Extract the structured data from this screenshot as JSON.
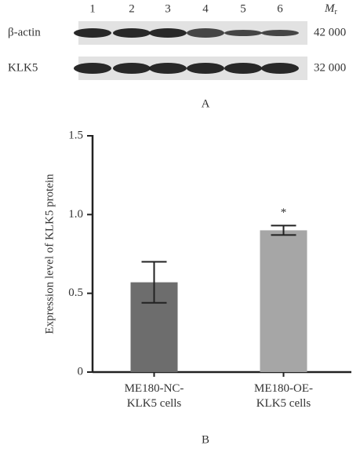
{
  "blot": {
    "lanes": [
      "1",
      "2",
      "3",
      "4",
      "5",
      "6"
    ],
    "mr_label": "M",
    "mr_sub": "r",
    "rows": [
      {
        "name": "β-actin",
        "mr": "42 000"
      },
      {
        "name": "KLK5",
        "mr": "32 000"
      }
    ],
    "panel_label": "A"
  },
  "chart_data": {
    "type": "bar",
    "y_label": "Expression level of KLK5 protein",
    "categories": [
      "ME180-NC-KLK5 cells",
      "ME180-OE-KLK5 cells"
    ],
    "values": [
      0.57,
      0.9
    ],
    "errors": [
      0.13,
      0.03
    ],
    "colors": [
      "#6d6d6d",
      "#a6a6a6"
    ],
    "ylim": [
      0,
      1.5
    ],
    "yticks": [
      0,
      0.5,
      {
        "value": 1,
        "label": "1.0"
      },
      1.5
    ],
    "annotations": [
      {
        "text": "*",
        "category": "ME180-OE-KLK5 cells"
      }
    ],
    "panel_label": "B"
  }
}
